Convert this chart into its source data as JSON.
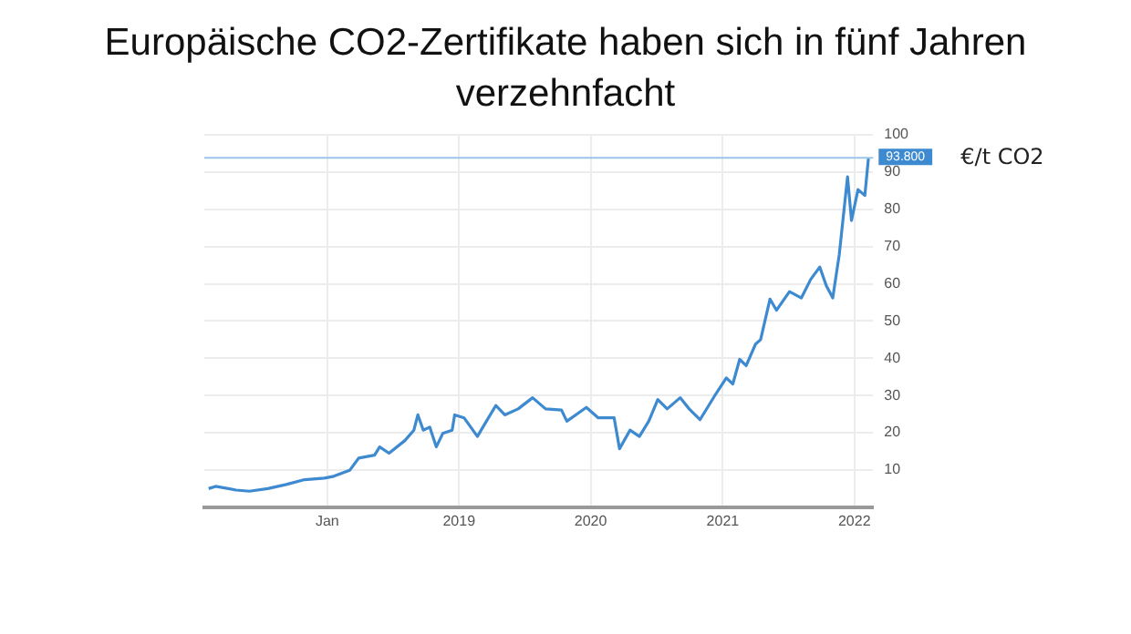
{
  "chart_data": {
    "type": "line",
    "title": "Europäische CO2-Zertifikate haben sich in fünf Jahren verzehnfacht",
    "ylabel": "€/t CO2",
    "x": [
      "2017-02-06",
      "2017-02-25",
      "2017-04-23",
      "2017-05-30",
      "2017-07-20",
      "2017-09-09",
      "2017-10-30",
      "2017-12-24",
      "2018-01-19",
      "2018-03-04",
      "2018-03-29",
      "2018-05-12",
      "2018-05-26",
      "2018-06-21",
      "2018-08-04",
      "2018-08-29",
      "2018-09-09",
      "2018-09-24",
      "2018-10-12",
      "2018-10-30",
      "2018-11-17",
      "2018-12-13",
      "2018-12-20",
      "2019-01-15",
      "2019-02-21",
      "2019-03-18",
      "2019-04-13",
      "2019-05-08",
      "2019-06-14",
      "2019-07-24",
      "2019-08-29",
      "2019-10-12",
      "2019-10-27",
      "2019-12-20",
      "2020-01-22",
      "2020-03-06",
      "2020-03-21",
      "2020-04-19",
      "2020-05-15",
      "2020-06-10",
      "2020-07-05",
      "2020-07-31",
      "2020-09-05",
      "2020-09-30",
      "2020-10-30",
      "2020-12-09",
      "2021-01-11",
      "2021-01-29",
      "2021-02-17",
      "2021-03-07",
      "2021-04-02",
      "2021-04-16",
      "2021-05-12",
      "2021-05-30",
      "2021-07-05",
      "2021-08-07",
      "2021-09-02",
      "2021-09-27",
      "2021-10-15",
      "2021-11-02",
      "2021-11-20",
      "2021-12-13",
      "2021-12-24",
      "2022-01-11",
      "2022-01-30",
      "2022-02-09"
    ],
    "series": [
      {
        "color": "#3d8ad0",
        "values": [
          5.0,
          5.6,
          4.6,
          4.3,
          5.0,
          6.1,
          7.4,
          7.8,
          8.3,
          9.9,
          13.2,
          14.0,
          16.2,
          14.5,
          17.9,
          20.7,
          24.8,
          20.7,
          21.5,
          16.2,
          19.8,
          20.7,
          24.8,
          24.0,
          19.0,
          23.1,
          27.3,
          24.8,
          26.4,
          29.4,
          26.4,
          26.1,
          23.1,
          26.8,
          24.0,
          24.0,
          15.7,
          20.7,
          19.0,
          23.1,
          28.9,
          26.4,
          29.4,
          26.4,
          23.5,
          29.8,
          34.7,
          33.1,
          39.7,
          38.0,
          43.8,
          45.0,
          55.9,
          52.9,
          57.9,
          56.2,
          61.2,
          64.5,
          59.5,
          56.2,
          67.8,
          88.7,
          77.0,
          85.3,
          83.7,
          93.8
        ]
      }
    ],
    "xlim": [
      "2017-01-25",
      "2022-02-22"
    ],
    "xticks": [
      {
        "value": "2018-01-01",
        "label": "Jan"
      },
      {
        "value": "2019-01-01",
        "label": "2019"
      },
      {
        "value": "2020-01-01",
        "label": "2020"
      },
      {
        "value": "2021-01-01",
        "label": "2021"
      },
      {
        "value": "2022-01-01",
        "label": "2022"
      }
    ],
    "ylim": [
      0,
      100
    ],
    "yticks": [
      10,
      20,
      30,
      40,
      50,
      60,
      70,
      80,
      90,
      100
    ],
    "ref_lines": [
      {
        "axis": "y",
        "value": 93.8,
        "label": "93.800",
        "color": "#9cc3e8"
      }
    ],
    "grid": true,
    "legend": false,
    "marker": "none",
    "line_style": "solid"
  }
}
